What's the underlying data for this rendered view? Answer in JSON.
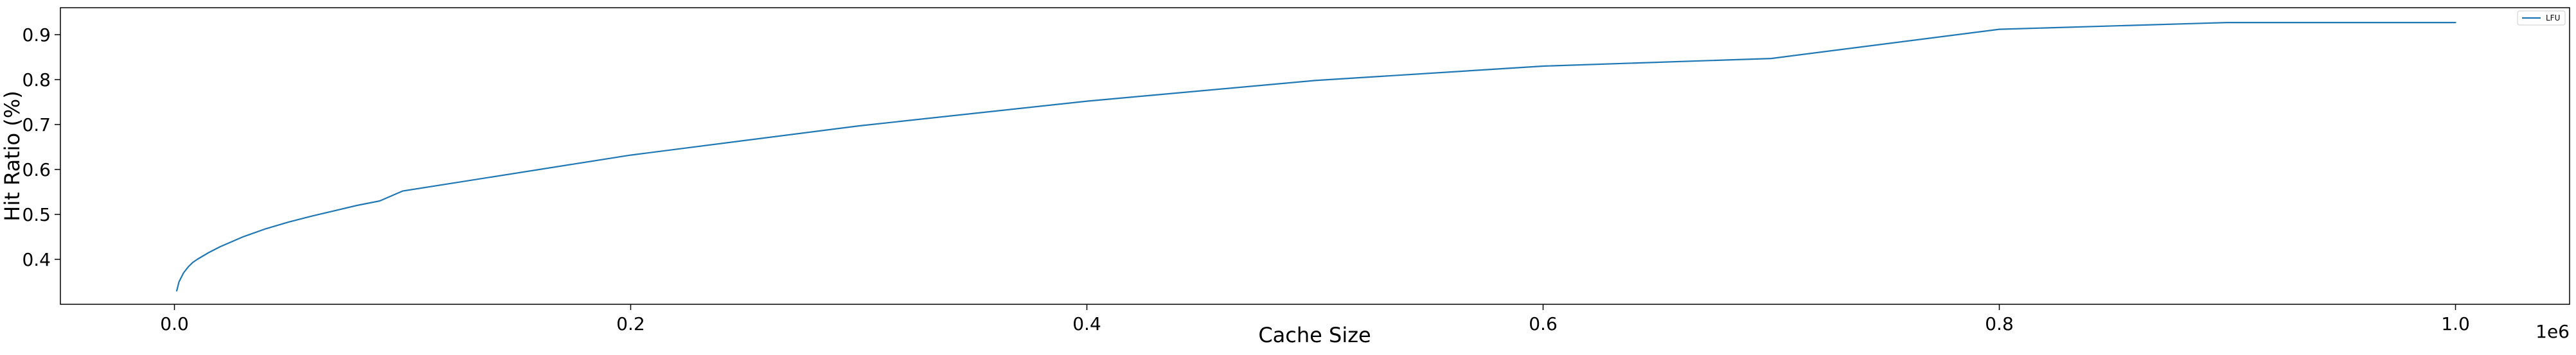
{
  "chart_data": {
    "type": "line",
    "title": "",
    "xlabel": "Cache Size",
    "ylabel": "Hit Ratio (%)",
    "x_offset_label": "1e6",
    "xlim": [
      -0.05,
      1.05
    ],
    "ylim": [
      0.3,
      0.96
    ],
    "x_ticks": [
      0.0,
      0.2,
      0.4,
      0.6,
      0.8,
      1.0
    ],
    "x_tick_labels": [
      "0.0",
      "0.2",
      "0.4",
      "0.6",
      "0.8",
      "1.0"
    ],
    "y_ticks": [
      0.4,
      0.5,
      0.6,
      0.7,
      0.8,
      0.9
    ],
    "y_tick_labels": [
      "0.4",
      "0.5",
      "0.6",
      "0.7",
      "0.8",
      "0.9"
    ],
    "grid": false,
    "legend_position": "top-right",
    "series": [
      {
        "name": "LFU",
        "color": "#1f77b4",
        "x": [
          0.001,
          0.002,
          0.004,
          0.006,
          0.008,
          0.01,
          0.015,
          0.02,
          0.03,
          0.04,
          0.05,
          0.06,
          0.07,
          0.08,
          0.09,
          0.1,
          0.2,
          0.3,
          0.4,
          0.5,
          0.6,
          0.7,
          0.8,
          0.9,
          1.0
        ],
        "y": [
          0.33,
          0.35,
          0.37,
          0.383,
          0.393,
          0.4,
          0.415,
          0.428,
          0.45,
          0.468,
          0.483,
          0.496,
          0.508,
          0.52,
          0.53,
          0.552,
          0.632,
          0.697,
          0.752,
          0.798,
          0.83,
          0.847,
          0.912,
          0.927,
          0.927
        ]
      }
    ]
  }
}
